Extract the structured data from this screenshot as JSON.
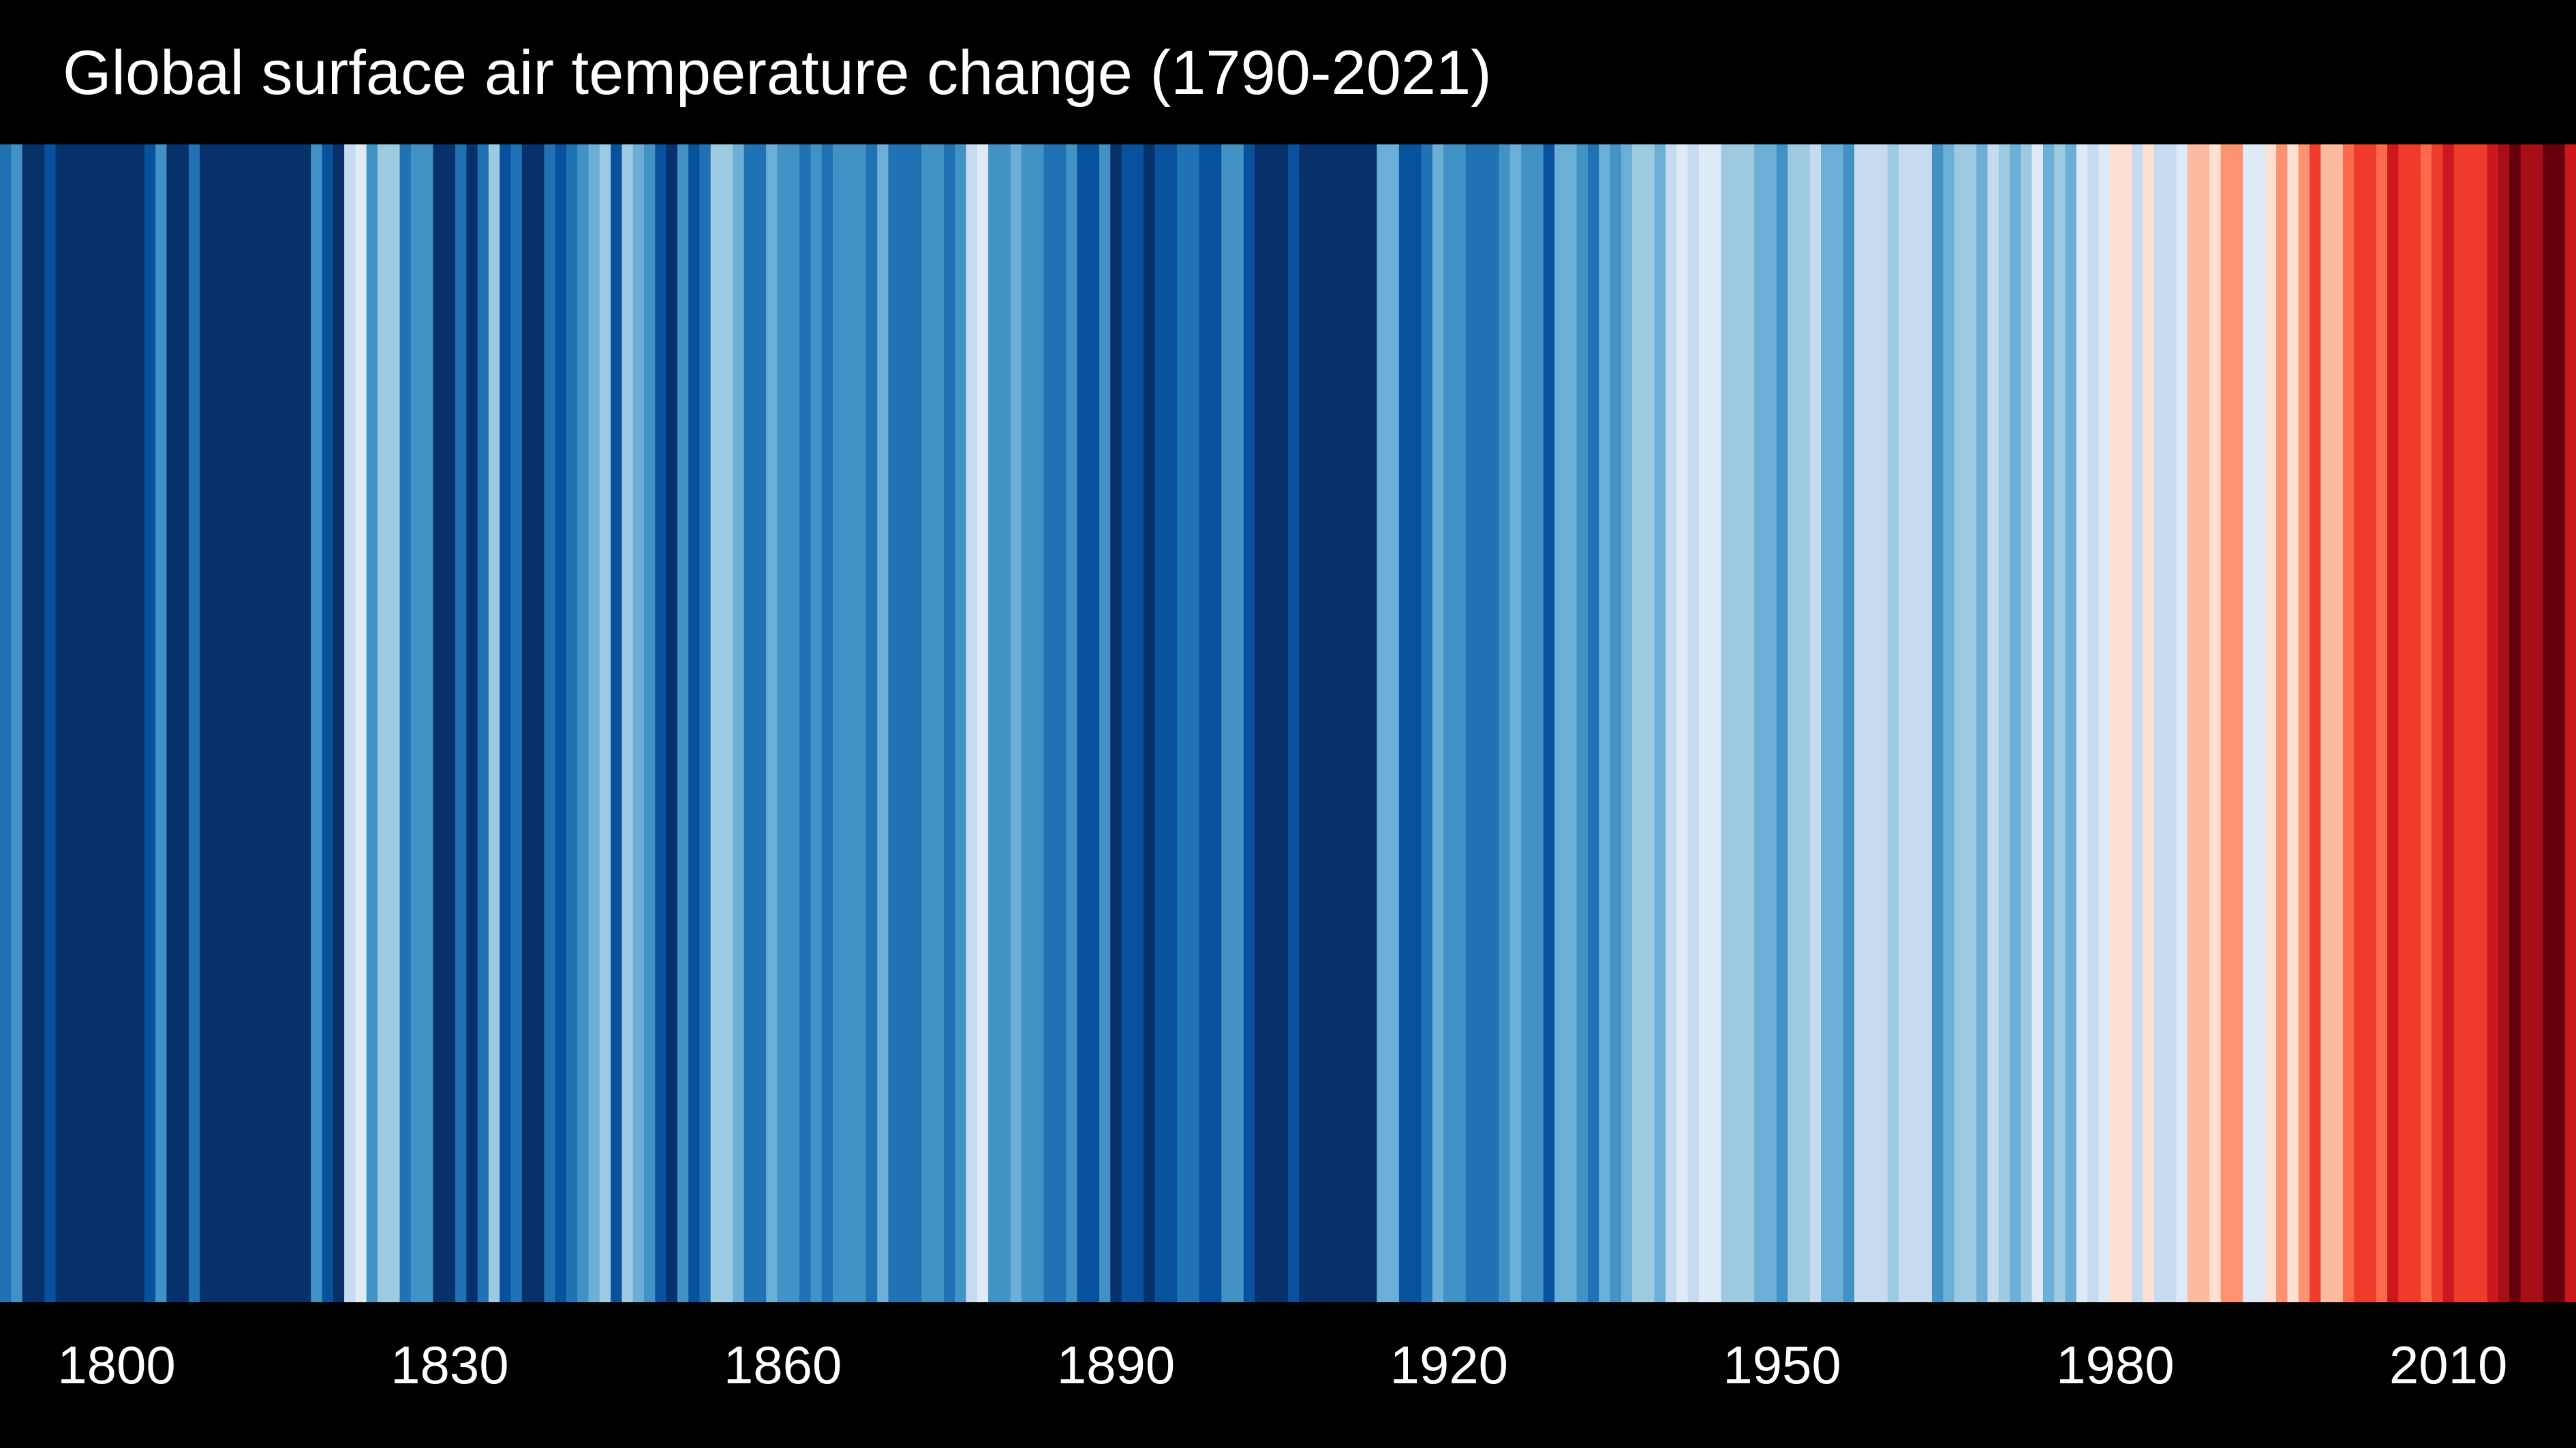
{
  "chart_data": {
    "type": "heatmap",
    "title": "Global surface air temperature change (1790-2021)",
    "x_start": 1790,
    "x_end": 2021,
    "xlim": [
      1790,
      2021
    ],
    "tick_labels": [
      "1800",
      "1830",
      "1860",
      "1890",
      "1920",
      "1950",
      "1980",
      "2010"
    ],
    "palette": [
      "#08306b",
      "#08519c",
      "#2171b5",
      "#4292c6",
      "#6baed6",
      "#9ecae1",
      "#c6dbef",
      "#deebf7",
      "#fee0d2",
      "#fcbba1",
      "#fc9272",
      "#fb6a4a",
      "#ef3b2c",
      "#cb181d",
      "#a50f15",
      "#67000d"
    ],
    "color_index": [
      2,
      3,
      0,
      0,
      1,
      0,
      0,
      0,
      0,
      0,
      0,
      0,
      0,
      1,
      3,
      0,
      0,
      2,
      0,
      0,
      0,
      0,
      0,
      0,
      0,
      0,
      0,
      0,
      3,
      1,
      0,
      6,
      7,
      3,
      5,
      5,
      2,
      3,
      3,
      0,
      0,
      2,
      0,
      2,
      5,
      1,
      2,
      0,
      0,
      2,
      1,
      2,
      3,
      4,
      5,
      1,
      5,
      4,
      3,
      1,
      0,
      3,
      1,
      2,
      5,
      5,
      4,
      2,
      2,
      4,
      3,
      3,
      2,
      3,
      2,
      3,
      3,
      3,
      2,
      4,
      2,
      2,
      2,
      3,
      3,
      2,
      3,
      6,
      7,
      3,
      3,
      4,
      3,
      3,
      2,
      2,
      3,
      1,
      1,
      3,
      0,
      1,
      1,
      0,
      1,
      1,
      2,
      2,
      1,
      1,
      3,
      3,
      1,
      0,
      0,
      0,
      1,
      0,
      0,
      0,
      0,
      0,
      0,
      0,
      4,
      4,
      1,
      1,
      2,
      4,
      3,
      3,
      2,
      2,
      2,
      3,
      4,
      3,
      3,
      1,
      4,
      4,
      3,
      2,
      4,
      3,
      4,
      5,
      5,
      4,
      6,
      7,
      6,
      7,
      7,
      5,
      5,
      5,
      4,
      4,
      3,
      5,
      5,
      6,
      4,
      4,
      3,
      6,
      6,
      6,
      5,
      6,
      6,
      6,
      3,
      4,
      5,
      5,
      4,
      6,
      5,
      4,
      5,
      7,
      4,
      5,
      4,
      7,
      6,
      7,
      8,
      8,
      6,
      8,
      6,
      6,
      7,
      9,
      9,
      8,
      10,
      10,
      7,
      7,
      8,
      10,
      8,
      10,
      12,
      9,
      9,
      11,
      12,
      12,
      11,
      13,
      12,
      12,
      11,
      12,
      13,
      12,
      12,
      12,
      13,
      14,
      15,
      14,
      14,
      15,
      15,
      13
    ]
  }
}
